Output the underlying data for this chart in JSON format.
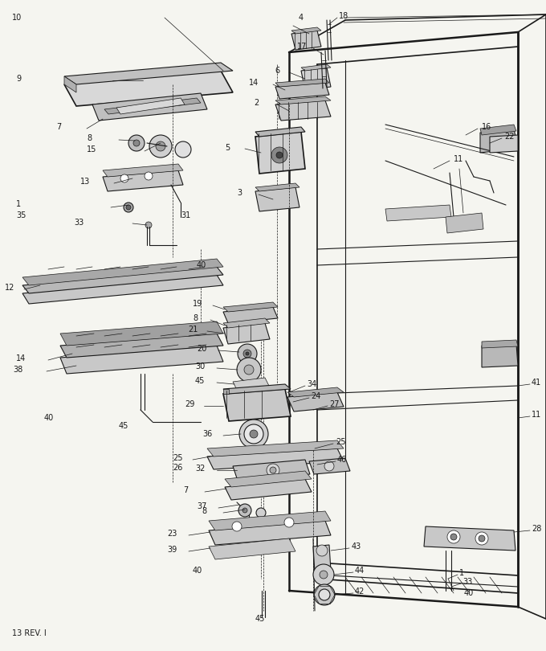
{
  "footer_text": "13 REV. I",
  "bg_color": "#f5f5f0",
  "line_color": "#1a1a1a",
  "fig_width": 6.8,
  "fig_height": 8.1,
  "dpi": 100
}
